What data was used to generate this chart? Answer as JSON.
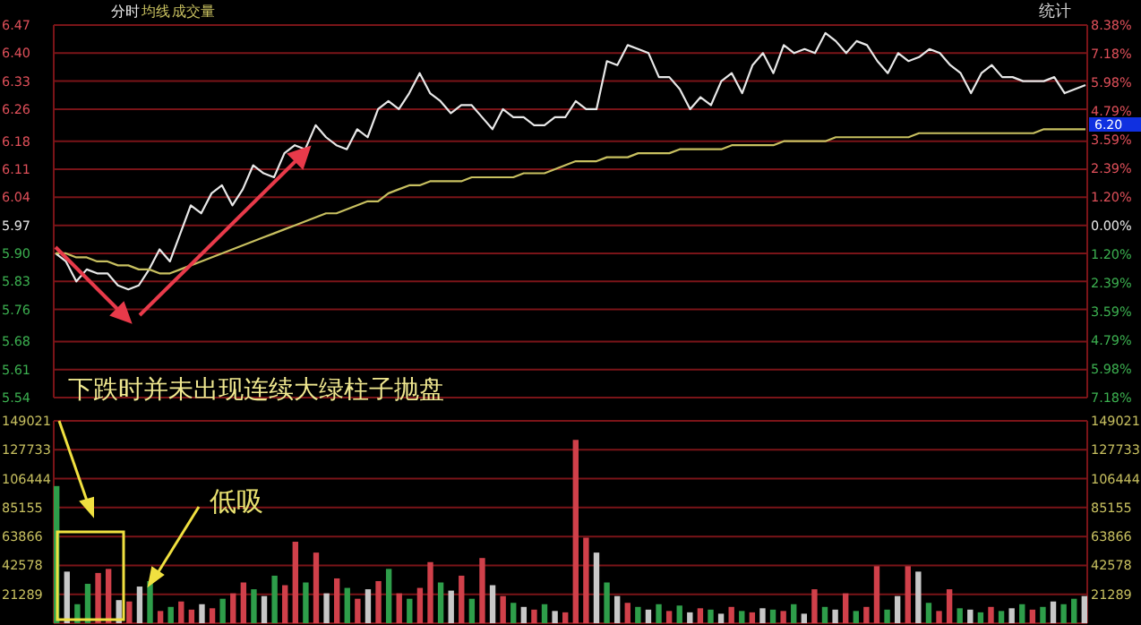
{
  "chart_data": [
    {
      "type": "line",
      "categories": [
        null,
        null,
        null,
        null,
        null,
        null,
        null,
        null,
        null,
        null,
        null,
        null,
        null,
        null,
        null,
        null,
        null,
        null,
        null,
        null,
        null,
        null,
        null,
        null,
        null,
        null,
        null,
        null,
        null,
        null,
        null,
        null,
        null,
        null,
        null,
        null,
        null,
        null,
        null,
        null,
        null,
        null,
        null,
        null,
        null,
        null,
        null,
        null,
        null,
        null,
        null,
        null,
        null,
        null,
        null,
        null,
        null,
        null,
        null,
        null,
        null,
        null,
        null,
        null,
        null,
        null,
        null,
        null,
        null,
        null,
        null,
        null,
        null,
        null,
        null,
        null,
        null,
        null,
        null,
        null,
        null,
        null,
        null,
        null,
        null,
        null,
        null,
        null,
        null,
        null,
        null,
        null,
        null,
        null,
        null,
        null,
        null,
        null,
        null,
        null
      ],
      "series": [
        {
          "name": "分时",
          "color": "#e8e8e8",
          "values": [
            5.9,
            5.88,
            5.83,
            5.86,
            5.85,
            5.85,
            5.82,
            5.81,
            5.82,
            5.86,
            5.91,
            5.88,
            5.95,
            6.02,
            6.0,
            6.05,
            6.07,
            6.02,
            6.06,
            6.12,
            6.1,
            6.09,
            6.15,
            6.17,
            6.16,
            6.22,
            6.19,
            6.17,
            6.16,
            6.21,
            6.19,
            6.26,
            6.28,
            6.26,
            6.3,
            6.35,
            6.3,
            6.28,
            6.25,
            6.27,
            6.27,
            6.24,
            6.21,
            6.26,
            6.24,
            6.24,
            6.22,
            6.22,
            6.24,
            6.24,
            6.28,
            6.26,
            6.26,
            6.38,
            6.37,
            6.42,
            6.41,
            6.4,
            6.34,
            6.34,
            6.31,
            6.26,
            6.29,
            6.27,
            6.33,
            6.35,
            6.3,
            6.37,
            6.4,
            6.35,
            6.42,
            6.4,
            6.41,
            6.4,
            6.45,
            6.43,
            6.4,
            6.43,
            6.42,
            6.38,
            6.35,
            6.4,
            6.38,
            6.39,
            6.41,
            6.4,
            6.37,
            6.35,
            6.3,
            6.35,
            6.37,
            6.34,
            6.34,
            6.33,
            6.33,
            6.33,
            6.34,
            6.3,
            6.31,
            6.32
          ]
        },
        {
          "name": "均线",
          "color": "#c8c060",
          "values": [
            5.9,
            5.9,
            5.89,
            5.89,
            5.88,
            5.88,
            5.87,
            5.87,
            5.86,
            5.86,
            5.85,
            5.85,
            5.86,
            5.87,
            5.88,
            5.89,
            5.9,
            5.91,
            5.92,
            5.93,
            5.94,
            5.95,
            5.96,
            5.97,
            5.98,
            5.99,
            6.0,
            6.0,
            6.01,
            6.02,
            6.03,
            6.03,
            6.05,
            6.06,
            6.07,
            6.07,
            6.08,
            6.08,
            6.08,
            6.08,
            6.09,
            6.09,
            6.09,
            6.09,
            6.09,
            6.1,
            6.1,
            6.1,
            6.11,
            6.12,
            6.13,
            6.13,
            6.13,
            6.14,
            6.14,
            6.14,
            6.15,
            6.15,
            6.15,
            6.15,
            6.16,
            6.16,
            6.16,
            6.16,
            6.16,
            6.17,
            6.17,
            6.17,
            6.17,
            6.17,
            6.18,
            6.18,
            6.18,
            6.18,
            6.18,
            6.19,
            6.19,
            6.19,
            6.19,
            6.19,
            6.19,
            6.19,
            6.19,
            6.2,
            6.2,
            6.2,
            6.2,
            6.2,
            6.2,
            6.2,
            6.2,
            6.2,
            6.2,
            6.2,
            6.2,
            6.21,
            6.21,
            6.21,
            6.21,
            6.21
          ]
        }
      ],
      "ylim": [
        5.54,
        6.47
      ],
      "yticks": [
        6.47,
        {
          "value": 6.4,
          "label": "6.40"
        },
        6.33,
        6.26,
        6.18,
        6.11,
        6.04,
        5.97,
        {
          "value": 5.9,
          "label": "5.90"
        },
        5.83,
        5.76,
        5.68,
        5.61,
        5.54
      ],
      "y2lim": [
        -7.18,
        8.38
      ],
      "y2ticks": [
        {
          "value": 8.38,
          "label": "8.38%"
        },
        {
          "value": 7.18,
          "label": "7.18%"
        },
        {
          "value": 5.98,
          "label": "5.98%"
        },
        {
          "value": 4.79,
          "label": "4.79%"
        },
        {
          "value": 3.59,
          "label": "3.59%"
        },
        {
          "value": 2.39,
          "label": "2.39%"
        },
        {
          "value": 1.2,
          "label": "1.20%"
        },
        {
          "value": 0,
          "label": "0.00%"
        },
        {
          "value": -1.2,
          "label": "1.20%"
        },
        {
          "value": -2.39,
          "label": "2.39%"
        },
        {
          "value": -3.59,
          "label": "3.59%"
        },
        {
          "value": -4.79,
          "label": "4.79%"
        },
        {
          "value": -5.98,
          "label": "5.98%"
        },
        {
          "value": -7.18,
          "label": "7.18%"
        }
      ],
      "grid": "y",
      "legend": "top left",
      "marker": "none",
      "annotations": [
        "统计",
        "6.20",
        "下跌时并未出现连续大绿柱子抛盘"
      ]
    },
    {
      "type": "bar",
      "categories": [
        null,
        null,
        null,
        null,
        null,
        null,
        null,
        null,
        null,
        null,
        null,
        null,
        null,
        null,
        null,
        null,
        null,
        null,
        null,
        null,
        null,
        null,
        null,
        null,
        null,
        null,
        null,
        null,
        null,
        null,
        null,
        null,
        null,
        null,
        null,
        null,
        null,
        null,
        null,
        null,
        null,
        null,
        null,
        null,
        null,
        null,
        null,
        null,
        null,
        null,
        null,
        null,
        null,
        null,
        null,
        null,
        null,
        null,
        null,
        null,
        null,
        null,
        null,
        null,
        null,
        null,
        null,
        null,
        null,
        null,
        null,
        null,
        null,
        null,
        null,
        null,
        null,
        null,
        null,
        null,
        null,
        null,
        null,
        null,
        null,
        null,
        null,
        null,
        null,
        null,
        null,
        null,
        null,
        null,
        null,
        null,
        null,
        null,
        null,
        null
      ],
      "series": [
        {
          "name": "成交量",
          "values": [
            101000,
            38000,
            14000,
            29000,
            37000,
            40000,
            17000,
            16000,
            27000,
            31000,
            9000,
            12000,
            16000,
            10000,
            14000,
            11000,
            18000,
            22000,
            30000,
            25000,
            20000,
            35000,
            28000,
            60000,
            30000,
            52000,
            22000,
            33000,
            26000,
            18000,
            25000,
            31000,
            40000,
            22000,
            18000,
            26000,
            45000,
            30000,
            24000,
            35000,
            18000,
            48000,
            28000,
            20000,
            15000,
            12000,
            10000,
            14000,
            9000,
            8000,
            135000,
            63000,
            52000,
            30000,
            20000,
            15000,
            12000,
            10000,
            14000,
            9000,
            13000,
            8000,
            11000,
            10000,
            7000,
            12000,
            9000,
            8000,
            11000,
            10000,
            9000,
            14000,
            7000,
            25000,
            12000,
            10000,
            22000,
            9000,
            12000,
            42000,
            10000,
            20000,
            42000,
            38000,
            15000,
            9000,
            25000,
            11000,
            10000,
            8000,
            12000,
            9000,
            11000,
            14000,
            10000,
            12000,
            16000,
            14000,
            18000,
            20000
          ],
          "colors": [
            "#2e9e4a",
            "#c8c8c8",
            "#2e9e4a",
            "#2e9e4a",
            "#d0404a",
            "#d0404a",
            "#c8c8c8",
            "#d0404a",
            "#c8c8c8",
            "#2e9e4a",
            "#d0404a",
            "#2e9e4a",
            "#d0404a",
            "#d0404a",
            "#c8c8c8",
            "#d0404a",
            "#2e9e4a",
            "#d0404a",
            "#d0404a",
            "#2e9e4a",
            "#c8c8c8",
            "#2e9e4a",
            "#d0404a",
            "#d0404a",
            "#2e9e4a",
            "#d0404a",
            "#c8c8c8",
            "#d0404a",
            "#2e9e4a",
            "#d0404a",
            "#c8c8c8",
            "#d0404a",
            "#2e9e4a",
            "#d0404a",
            "#2e9e4a",
            "#d0404a",
            "#d0404a",
            "#2e9e4a",
            "#c8c8c8",
            "#d0404a",
            "#2e9e4a",
            "#d0404a",
            "#c8c8c8",
            "#d0404a",
            "#2e9e4a",
            "#c8c8c8",
            "#d0404a",
            "#2e9e4a",
            "#c8c8c8",
            "#d0404a",
            "#d0404a",
            "#d0404a",
            "#c8c8c8",
            "#2e9e4a",
            "#c8c8c8",
            "#d0404a",
            "#2e9e4a",
            "#c8c8c8",
            "#2e9e4a",
            "#d0404a",
            "#2e9e4a",
            "#c8c8c8",
            "#d0404a",
            "#2e9e4a",
            "#c8c8c8",
            "#d0404a",
            "#2e9e4a",
            "#d0404a",
            "#c8c8c8",
            "#2e9e4a",
            "#d0404a",
            "#2e9e4a",
            "#c8c8c8",
            "#d0404a",
            "#2e9e4a",
            "#c8c8c8",
            "#d0404a",
            "#2e9e4a",
            "#d0404a",
            "#d0404a",
            "#2e9e4a",
            "#c8c8c8",
            "#d0404a",
            "#c8c8c8",
            "#2e9e4a",
            "#d0404a",
            "#d0404a",
            "#2e9e4a",
            "#c8c8c8",
            "#2e9e4a",
            "#d0404a",
            "#2e9e4a",
            "#c8c8c8",
            "#2e9e4a",
            "#d0404a",
            "#2e9e4a",
            "#c8c8c8",
            "#2e9e4a",
            "#2e9e4a",
            "#c8c8c8"
          ]
        }
      ],
      "ylim": [
        0,
        149021
      ],
      "yticks": [
        149021,
        127733,
        106444,
        85155,
        63866,
        42578,
        21289
      ],
      "y2lim": [
        0,
        149021
      ],
      "y2ticks": [
        149021,
        127733,
        106444,
        85155,
        63866,
        42578,
        21289
      ],
      "grid": "y",
      "legend": "top left",
      "annotations": [
        "低吸"
      ]
    }
  ]
}
